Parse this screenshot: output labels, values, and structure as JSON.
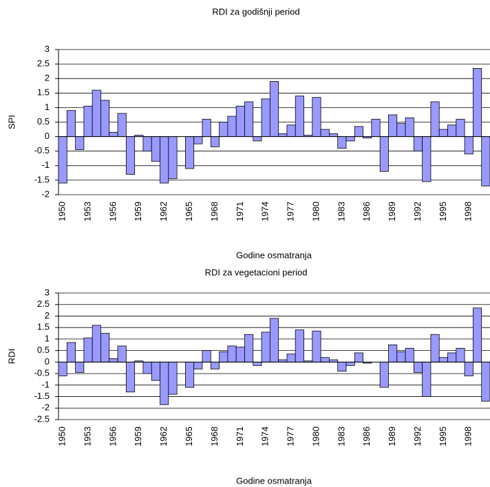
{
  "chart_data": [
    {
      "type": "bar",
      "title": "RDI za godišnji period",
      "x_label": "Godine osmatranja",
      "y_label": "SPI",
      "categories": [
        "1950",
        null,
        null,
        "1953",
        null,
        null,
        "1956",
        null,
        null,
        "1959",
        null,
        null,
        "1962",
        null,
        null,
        "1965",
        null,
        null,
        "1968",
        null,
        null,
        "1971",
        null,
        null,
        "1974",
        null,
        null,
        "1977",
        null,
        null,
        "1980",
        null,
        null,
        "1983",
        null,
        null,
        "1986",
        null,
        null,
        "1989",
        null,
        null,
        "1992",
        null,
        null,
        "1995",
        null,
        null,
        "1998",
        null,
        null
      ],
      "values": [
        -1.6,
        0.9,
        -0.45,
        1.05,
        1.6,
        1.25,
        0.15,
        0.8,
        -1.3,
        0.05,
        -0.5,
        -0.85,
        -1.6,
        -1.45,
        0,
        -1.1,
        -0.25,
        0.6,
        -0.35,
        0.5,
        0.7,
        1.05,
        1.2,
        -0.15,
        1.3,
        1.9,
        0.1,
        0.4,
        1.4,
        0.05,
        1.35,
        0.25,
        0.1,
        -0.4,
        -0.15,
        0.35,
        -0.05,
        0.6,
        -1.2,
        0.75,
        0.45,
        0.65,
        -0.5,
        -1.55,
        1.2,
        0.25,
        0.4,
        0.6,
        -0.6,
        2.35,
        -1.7
      ],
      "color": "#9999ff",
      "ylim": [
        -2,
        3
      ],
      "yticks": [
        -2,
        -1.5,
        -1,
        -0.5,
        0,
        0.5,
        1,
        1.5,
        2,
        2.5,
        3
      ],
      "grid": true
    },
    {
      "type": "bar",
      "title": "RDI za vegetacioni period",
      "x_label": "Godine osmatranja",
      "y_label": "RDI",
      "categories": [
        "1950",
        null,
        null,
        "1953",
        null,
        null,
        "1956",
        null,
        null,
        "1959",
        null,
        null,
        "1962",
        null,
        null,
        "1965",
        null,
        null,
        "1968",
        null,
        null,
        "1971",
        null,
        null,
        "1974",
        null,
        null,
        "1977",
        null,
        null,
        "1980",
        null,
        null,
        "1983",
        null,
        null,
        "1986",
        null,
        null,
        "1989",
        null,
        null,
        "1992",
        null,
        null,
        "1995",
        null,
        null,
        "1998",
        null,
        null
      ],
      "values": [
        -0.6,
        0.85,
        -0.45,
        1.05,
        1.6,
        1.25,
        0.15,
        0.7,
        -1.3,
        0.05,
        -0.5,
        -0.8,
        -1.85,
        -1.4,
        0,
        -1.1,
        -0.3,
        0.5,
        -0.3,
        0.45,
        0.7,
        0.65,
        1.2,
        -0.15,
        1.3,
        1.9,
        0.1,
        0.35,
        1.4,
        0.05,
        1.35,
        0.2,
        0.1,
        -0.4,
        -0.15,
        0.4,
        -0.05,
        0,
        -1.1,
        0.75,
        0.45,
        0.6,
        -0.45,
        -1.5,
        1.2,
        0.2,
        0.4,
        0.6,
        -0.6,
        2.35,
        -1.7
      ],
      "color": "#9999ff",
      "ylim": [
        -2.5,
        3
      ],
      "yticks": [
        -2.5,
        -2,
        -1.5,
        -1,
        -0.5,
        0,
        0.5,
        1,
        1.5,
        2,
        2.5,
        3
      ],
      "grid": true
    }
  ]
}
